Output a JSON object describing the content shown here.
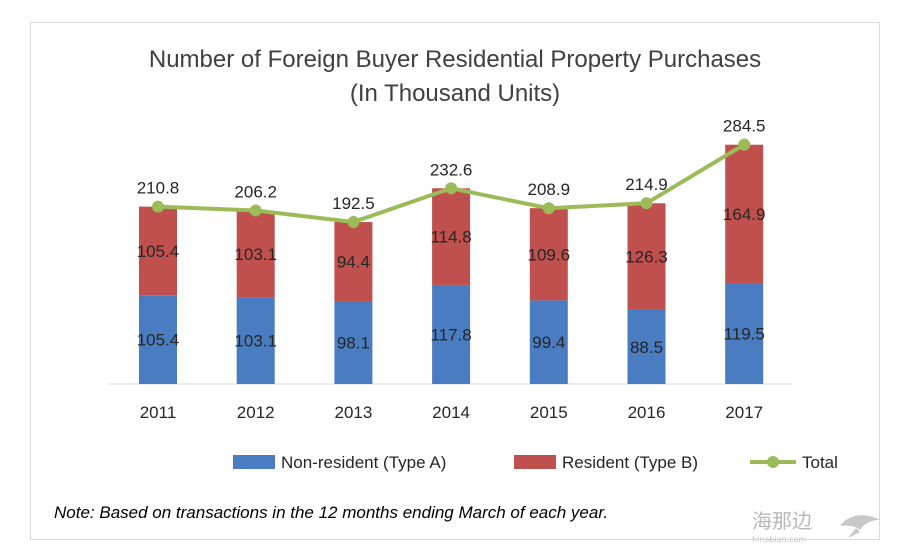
{
  "chart_data": {
    "type": "bar",
    "stacked": true,
    "title": "Number of Foreign Buyer Residential Property Purchases",
    "subtitle": "(In Thousand Units)",
    "categories": [
      "2011",
      "2012",
      "2013",
      "2014",
      "2015",
      "2016",
      "2017"
    ],
    "series": [
      {
        "name": "Non-resident (Type A)",
        "type": "bar",
        "color": "#4a7cc1",
        "values": [
          105.4,
          103.1,
          98.1,
          117.8,
          99.4,
          88.5,
          119.5
        ]
      },
      {
        "name": "Resident (Type B)",
        "type": "bar",
        "color": "#c0504d",
        "values": [
          105.4,
          103.1,
          94.4,
          114.8,
          109.6,
          126.3,
          164.9
        ]
      },
      {
        "name": "Total",
        "type": "line",
        "color": "#9bbb59",
        "values": [
          210.8,
          206.2,
          192.5,
          232.6,
          208.9,
          214.9,
          284.5
        ]
      }
    ],
    "segment_labels": {
      "Non-resident (Type A)": [
        "105.4",
        "103.1",
        "98.1",
        "117.8",
        "99.4",
        "88.5",
        "119.5"
      ],
      "Resident (Type B)": [
        "105.4",
        "103.1",
        "94.4",
        "114.8",
        "109.6",
        "126.3",
        "164.9"
      ],
      "Total": [
        "210.8",
        "206.2",
        "192.5",
        "232.6",
        "208.9",
        "214.9",
        "284.5"
      ]
    },
    "ylim": [
      0,
      290
    ],
    "grid": false,
    "legend_position": "bottom"
  },
  "note": "Note: Based on transactions in the 12 months ending March of each year.",
  "watermark": {
    "text": "海那边",
    "subtext": "hinabian.com"
  }
}
